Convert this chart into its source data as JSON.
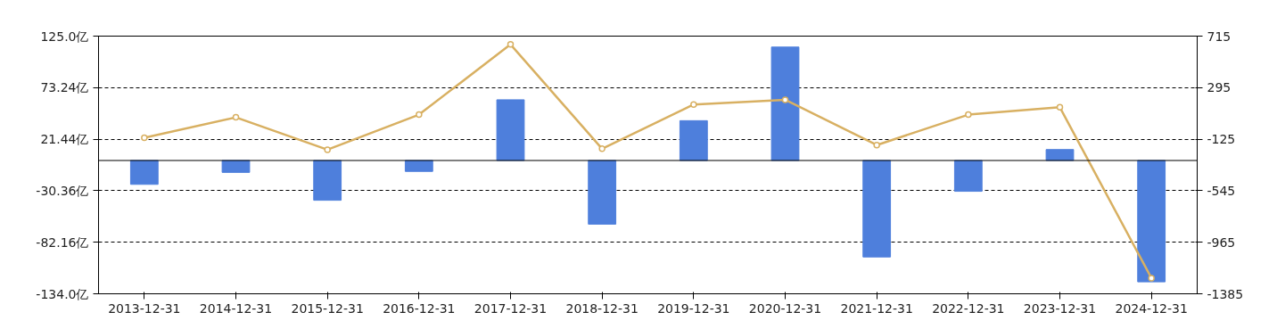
{
  "chart_data": {
    "type": "bar",
    "categories": [
      "2013-12-31",
      "2014-12-31",
      "2015-12-31",
      "2016-12-31",
      "2017-12-31",
      "2018-12-31",
      "2019-12-31",
      "2020-12-31",
      "2021-12-31",
      "2022-12-31",
      "2023-12-31",
      "2024-12-31"
    ],
    "series": [
      {
        "color": "#4e7fdc",
        "values": [
          -24,
          -12,
          -40,
          -11,
          61,
          -64,
          40,
          114,
          -97,
          -31,
          11,
          -122
        ]
      },
      {
        "type": "line",
        "axis": "y2",
        "color": "#d8b062",
        "marker": "circle",
        "line_style": "solid",
        "values": [
          -113,
          53,
          -211,
          75,
          647,
          -203,
          158,
          196,
          -173,
          75,
          135,
          -1257
        ]
      }
    ],
    "ylim": [
      -134.0,
      125.0
    ],
    "yticks": [
      {
        "value": 125.0,
        "label": "125.0亿"
      },
      {
        "value": 73.24,
        "label": "73.24亿"
      },
      {
        "value": 21.44,
        "label": "21.44亿"
      },
      {
        "value": -30.36,
        "label": "-30.36亿"
      },
      {
        "value": -82.16,
        "label": "-82.16亿"
      },
      {
        "value": -134.0,
        "label": "-134.0亿"
      }
    ],
    "y2lim": [
      -1385,
      715
    ],
    "y2ticks": [
      715,
      295,
      -125,
      -545,
      -965,
      -1385
    ],
    "ref_lines": [
      {
        "axis": "y",
        "value": 0,
        "color": "#000000",
        "line_style": "solid"
      }
    ],
    "grid": "y"
  }
}
